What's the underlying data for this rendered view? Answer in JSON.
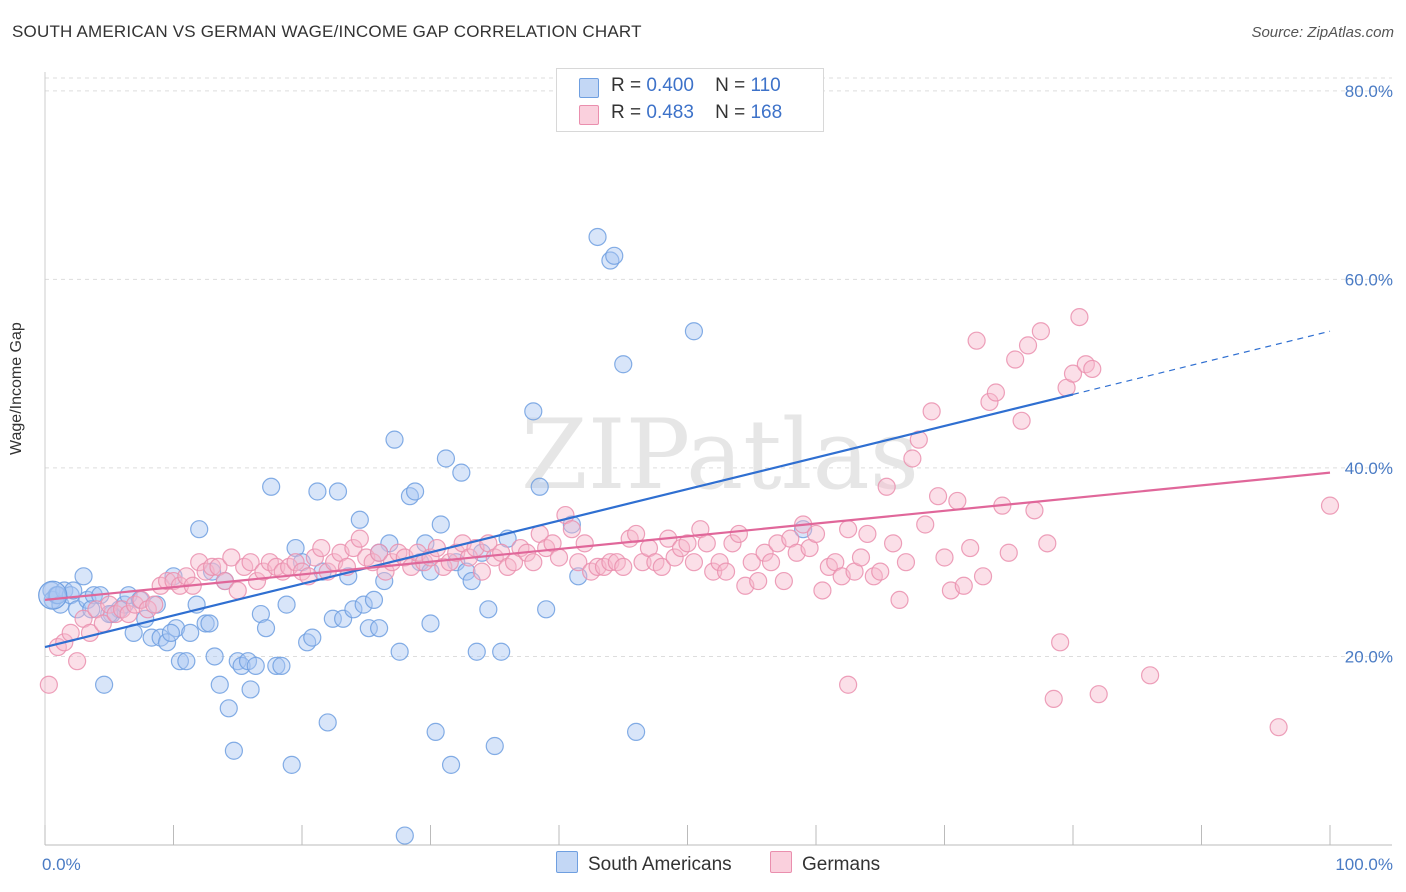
{
  "title": "SOUTH AMERICAN VS GERMAN WAGE/INCOME GAP CORRELATION CHART",
  "source": "Source: ZipAtlas.com",
  "watermark": "ZIPatlas",
  "legend": {
    "rows": [
      {
        "r_label": "R =",
        "r_value": "0.400",
        "n_label": "N =",
        "n_value": "110",
        "color": "#a9c6f2"
      },
      {
        "r_label": "R =",
        "r_value": "0.483",
        "n_label": "N =",
        "n_value": "168",
        "color": "#f6b7cb"
      }
    ]
  },
  "bottom_legend": [
    {
      "label": "South Americans",
      "color": "#a9c6f2"
    },
    {
      "label": "Germans",
      "color": "#f6b7cb"
    }
  ],
  "chart_data": {
    "type": "scatter",
    "xlabel": "",
    "ylabel": "Wage/Income Gap",
    "xlim": [
      0,
      100
    ],
    "ylim": [
      0,
      82
    ],
    "x_tick_labels": {
      "left": "0.0%",
      "right": "100.0%"
    },
    "y_ticks": [
      20,
      40,
      60,
      80
    ],
    "y_tick_labels": [
      "20.0%",
      "40.0%",
      "60.0%",
      "80.0%"
    ],
    "grid": true,
    "series": [
      {
        "name": "South Americans",
        "color": "#6f9fe0",
        "fill": "#a9c6f2",
        "trend": {
          "x0": 0,
          "y0": 21.0,
          "x1": 100,
          "y1": 54.5,
          "solid_until": 80
        },
        "points": [
          [
            0.5,
            27.0
          ],
          [
            0.6,
            26.0
          ],
          [
            0.9,
            26.5
          ],
          [
            1.2,
            25.5
          ],
          [
            1.5,
            27.0
          ],
          [
            2.0,
            26.5
          ],
          [
            2.5,
            25.0
          ],
          [
            3.0,
            28.5
          ],
          [
            3.3,
            26.0
          ],
          [
            3.8,
            26.5
          ],
          [
            4.3,
            26.5
          ],
          [
            4.6,
            17.0
          ],
          [
            5.2,
            24.5
          ],
          [
            5.8,
            25.0
          ],
          [
            6.2,
            25.5
          ],
          [
            6.5,
            26.5
          ],
          [
            6.9,
            22.5
          ],
          [
            7.4,
            26.0
          ],
          [
            7.8,
            24.0
          ],
          [
            8.3,
            22.0
          ],
          [
            8.7,
            25.5
          ],
          [
            9.0,
            22.0
          ],
          [
            9.5,
            21.5
          ],
          [
            10.0,
            28.5
          ],
          [
            10.2,
            23.0
          ],
          [
            10.5,
            19.5
          ],
          [
            11.0,
            19.5
          ],
          [
            11.3,
            22.5
          ],
          [
            11.8,
            25.5
          ],
          [
            12.0,
            33.5
          ],
          [
            12.5,
            23.5
          ],
          [
            12.8,
            23.5
          ],
          [
            13.2,
            20.0
          ],
          [
            13.6,
            17.0
          ],
          [
            14.0,
            28.0
          ],
          [
            14.3,
            14.5
          ],
          [
            14.7,
            10.0
          ],
          [
            15.0,
            19.5
          ],
          [
            15.3,
            19.0
          ],
          [
            15.8,
            19.5
          ],
          [
            16.0,
            16.5
          ],
          [
            16.4,
            19.0
          ],
          [
            16.8,
            24.5
          ],
          [
            17.2,
            23.0
          ],
          [
            17.6,
            38.0
          ],
          [
            18.0,
            19.0
          ],
          [
            18.4,
            19.0
          ],
          [
            18.8,
            25.5
          ],
          [
            19.2,
            8.5
          ],
          [
            19.5,
            31.5
          ],
          [
            20.0,
            30.0
          ],
          [
            20.4,
            21.5
          ],
          [
            20.8,
            22.0
          ],
          [
            21.2,
            37.5
          ],
          [
            21.6,
            29.0
          ],
          [
            22.0,
            13.0
          ],
          [
            22.4,
            24.0
          ],
          [
            22.8,
            37.5
          ],
          [
            23.2,
            24.0
          ],
          [
            23.6,
            28.5
          ],
          [
            24.0,
            25.0
          ],
          [
            24.5,
            34.5
          ],
          [
            24.8,
            25.5
          ],
          [
            25.2,
            23.0
          ],
          [
            25.6,
            26.0
          ],
          [
            26.0,
            23.0
          ],
          [
            26.4,
            28.0
          ],
          [
            26.8,
            32.0
          ],
          [
            27.2,
            43.0
          ],
          [
            27.6,
            20.5
          ],
          [
            28.0,
            1.0
          ],
          [
            28.4,
            37.0
          ],
          [
            28.8,
            37.5
          ],
          [
            29.2,
            30.0
          ],
          [
            29.6,
            32.0
          ],
          [
            30.0,
            23.5
          ],
          [
            30.4,
            12.0
          ],
          [
            30.8,
            34.0
          ],
          [
            31.2,
            41.0
          ],
          [
            31.6,
            8.5
          ],
          [
            32.0,
            30.0
          ],
          [
            32.4,
            39.5
          ],
          [
            32.8,
            29.0
          ],
          [
            33.2,
            28.0
          ],
          [
            33.6,
            20.5
          ],
          [
            34.0,
            31.0
          ],
          [
            34.5,
            25.0
          ],
          [
            35.0,
            10.5
          ],
          [
            35.5,
            20.5
          ],
          [
            36.0,
            32.5
          ],
          [
            38.0,
            46.0
          ],
          [
            38.5,
            38.0
          ],
          [
            39.0,
            25.0
          ],
          [
            41.0,
            34.0
          ],
          [
            41.5,
            28.5
          ],
          [
            43.0,
            64.5
          ],
          [
            44.0,
            62.0
          ],
          [
            44.3,
            62.5
          ],
          [
            45.0,
            51.0
          ],
          [
            46.0,
            12.0
          ],
          [
            50.5,
            54.5
          ],
          [
            59.0,
            33.5
          ],
          [
            1.0,
            26.5
          ],
          [
            2.2,
            27.0
          ],
          [
            3.6,
            25.0
          ],
          [
            5.0,
            24.5
          ],
          [
            9.8,
            22.5
          ],
          [
            13.0,
            29.0
          ],
          [
            30.0,
            29.0
          ],
          [
            26.0,
            31.0
          ]
        ]
      },
      {
        "name": "Germans",
        "color": "#ea8fae",
        "fill": "#f6b7cb",
        "trend": {
          "x0": 0,
          "y0": 26.0,
          "x1": 100,
          "y1": 39.5,
          "solid_until": 100
        },
        "points": [
          [
            0.3,
            17.0
          ],
          [
            1.0,
            21.0
          ],
          [
            1.5,
            21.5
          ],
          [
            2.0,
            22.5
          ],
          [
            2.5,
            19.5
          ],
          [
            3.0,
            24.0
          ],
          [
            3.5,
            22.5
          ],
          [
            4.0,
            25.0
          ],
          [
            4.5,
            23.5
          ],
          [
            5.0,
            25.5
          ],
          [
            5.5,
            24.5
          ],
          [
            6.0,
            25.0
          ],
          [
            6.5,
            24.5
          ],
          [
            7.0,
            25.5
          ],
          [
            7.5,
            26.0
          ],
          [
            8.0,
            25.0
          ],
          [
            8.5,
            25.5
          ],
          [
            9.0,
            27.5
          ],
          [
            9.5,
            28.0
          ],
          [
            10.0,
            28.0
          ],
          [
            10.5,
            27.5
          ],
          [
            11.0,
            28.5
          ],
          [
            11.5,
            27.5
          ],
          [
            12.0,
            30.0
          ],
          [
            12.5,
            29.0
          ],
          [
            13.0,
            29.5
          ],
          [
            13.5,
            29.5
          ],
          [
            14.0,
            28.0
          ],
          [
            14.5,
            30.5
          ],
          [
            15.0,
            27.0
          ],
          [
            15.5,
            29.5
          ],
          [
            16.0,
            30.0
          ],
          [
            16.5,
            28.0
          ],
          [
            17.0,
            29.0
          ],
          [
            17.5,
            30.0
          ],
          [
            18.0,
            29.5
          ],
          [
            18.5,
            29.0
          ],
          [
            19.0,
            29.5
          ],
          [
            19.5,
            30.0
          ],
          [
            20.0,
            29.0
          ],
          [
            20.5,
            28.5
          ],
          [
            21.0,
            30.5
          ],
          [
            21.5,
            31.5
          ],
          [
            22.0,
            29.0
          ],
          [
            22.5,
            30.0
          ],
          [
            23.0,
            31.0
          ],
          [
            23.5,
            29.5
          ],
          [
            24.0,
            31.5
          ],
          [
            24.5,
            32.5
          ],
          [
            25.0,
            30.5
          ],
          [
            25.5,
            30.0
          ],
          [
            26.0,
            31.0
          ],
          [
            26.5,
            29.0
          ],
          [
            27.0,
            30.0
          ],
          [
            27.5,
            31.0
          ],
          [
            28.0,
            30.5
          ],
          [
            28.5,
            29.5
          ],
          [
            29.0,
            31.0
          ],
          [
            29.5,
            30.0
          ],
          [
            30.0,
            30.5
          ],
          [
            30.5,
            31.5
          ],
          [
            31.0,
            29.5
          ],
          [
            31.5,
            30.0
          ],
          [
            32.0,
            31.0
          ],
          [
            32.5,
            32.0
          ],
          [
            33.0,
            30.5
          ],
          [
            33.5,
            31.5
          ],
          [
            34.0,
            29.0
          ],
          [
            34.5,
            32.0
          ],
          [
            35.0,
            30.5
          ],
          [
            35.5,
            31.0
          ],
          [
            36.0,
            29.5
          ],
          [
            36.5,
            30.0
          ],
          [
            37.0,
            31.5
          ],
          [
            37.5,
            31.0
          ],
          [
            38.0,
            30.0
          ],
          [
            38.5,
            33.0
          ],
          [
            39.0,
            31.5
          ],
          [
            39.5,
            32.0
          ],
          [
            40.0,
            30.5
          ],
          [
            40.5,
            35.0
          ],
          [
            41.0,
            33.5
          ],
          [
            41.5,
            30.0
          ],
          [
            42.0,
            32.0
          ],
          [
            42.5,
            29.0
          ],
          [
            43.0,
            29.5
          ],
          [
            43.5,
            29.5
          ],
          [
            44.0,
            30.0
          ],
          [
            44.5,
            30.0
          ],
          [
            45.0,
            29.5
          ],
          [
            45.5,
            32.5
          ],
          [
            46.0,
            33.0
          ],
          [
            46.5,
            30.0
          ],
          [
            47.0,
            31.5
          ],
          [
            47.5,
            30.0
          ],
          [
            48.0,
            29.5
          ],
          [
            48.5,
            32.5
          ],
          [
            49.0,
            30.5
          ],
          [
            49.5,
            31.5
          ],
          [
            50.0,
            32.0
          ],
          [
            50.5,
            30.0
          ],
          [
            51.0,
            33.5
          ],
          [
            51.5,
            32.0
          ],
          [
            52.0,
            29.0
          ],
          [
            52.5,
            30.0
          ],
          [
            53.0,
            29.0
          ],
          [
            53.5,
            32.0
          ],
          [
            54.0,
            33.0
          ],
          [
            54.5,
            27.5
          ],
          [
            55.0,
            30.0
          ],
          [
            55.5,
            28.0
          ],
          [
            56.0,
            31.0
          ],
          [
            56.5,
            30.0
          ],
          [
            57.0,
            32.0
          ],
          [
            57.5,
            28.0
          ],
          [
            58.0,
            32.5
          ],
          [
            58.5,
            31.0
          ],
          [
            59.0,
            34.0
          ],
          [
            59.5,
            31.5
          ],
          [
            60.0,
            33.0
          ],
          [
            60.5,
            27.0
          ],
          [
            61.0,
            29.5
          ],
          [
            61.5,
            30.0
          ],
          [
            62.0,
            28.5
          ],
          [
            62.5,
            33.5
          ],
          [
            63.0,
            29.0
          ],
          [
            63.5,
            30.5
          ],
          [
            64.0,
            33.0
          ],
          [
            64.5,
            28.5
          ],
          [
            65.0,
            29.0
          ],
          [
            65.5,
            38.0
          ],
          [
            66.0,
            32.0
          ],
          [
            66.5,
            26.0
          ],
          [
            67.0,
            30.0
          ],
          [
            67.5,
            41.0
          ],
          [
            68.0,
            43.0
          ],
          [
            68.5,
            34.0
          ],
          [
            69.0,
            46.0
          ],
          [
            69.5,
            37.0
          ],
          [
            70.0,
            30.5
          ],
          [
            70.5,
            27.0
          ],
          [
            71.0,
            36.5
          ],
          [
            71.5,
            27.5
          ],
          [
            72.0,
            31.5
          ],
          [
            72.5,
            53.5
          ],
          [
            73.0,
            28.5
          ],
          [
            73.5,
            47.0
          ],
          [
            74.0,
            48.0
          ],
          [
            74.5,
            36.0
          ],
          [
            75.0,
            31.0
          ],
          [
            75.5,
            51.5
          ],
          [
            76.0,
            45.0
          ],
          [
            76.5,
            53.0
          ],
          [
            77.0,
            35.5
          ],
          [
            77.5,
            54.5
          ],
          [
            78.0,
            32.0
          ],
          [
            78.5,
            15.5
          ],
          [
            79.0,
            21.5
          ],
          [
            79.5,
            48.5
          ],
          [
            80.0,
            50.0
          ],
          [
            80.5,
            56.0
          ],
          [
            81.0,
            51.0
          ],
          [
            81.5,
            50.5
          ],
          [
            82.0,
            16.0
          ],
          [
            86.0,
            18.0
          ],
          [
            96.0,
            12.5
          ],
          [
            100.0,
            36.0
          ],
          [
            62.5,
            17.0
          ]
        ]
      }
    ]
  }
}
